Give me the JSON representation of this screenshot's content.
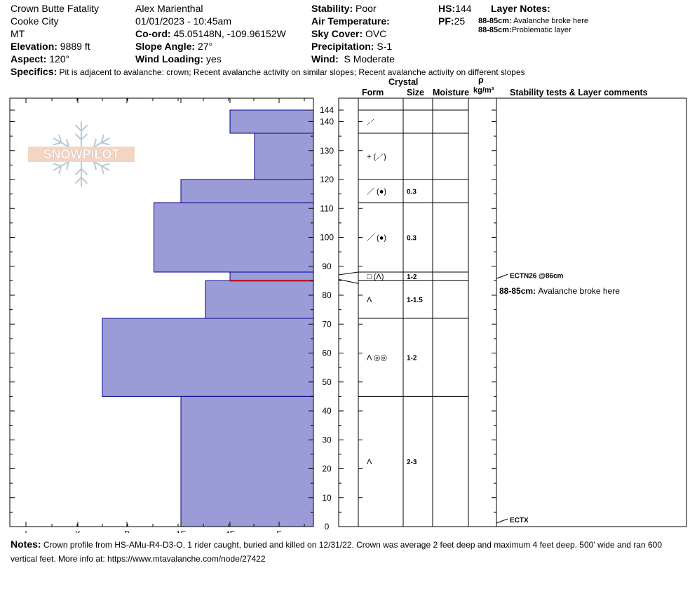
{
  "site": {
    "name": "Crown Butte Fatality",
    "city": "Cooke City",
    "state": "MT",
    "elevation_label": "Elevation:",
    "elevation": "9889 ft",
    "aspect_label": "Aspect:",
    "aspect": "120°"
  },
  "observer": {
    "name": "Alex Marienthal",
    "datetime": "01/01/2023 - 10:45am",
    "coord_label": "Co-ord:",
    "coord": "45.05148N, -109.96152W",
    "slope_label": "Slope Angle:",
    "slope": "27°",
    "wind_loading_label": "Wind Loading:",
    "wind_loading": "yes"
  },
  "conditions": {
    "stability_label": "Stability:",
    "stability": "Poor",
    "air_temp_label": "Air Temperature:",
    "sky_label": "Sky Cover:",
    "sky": "OVC",
    "precip_label": "Precipitation:",
    "precip": "S-1",
    "wind_label": "Wind:",
    "wind": "S Moderate"
  },
  "snowpack": {
    "hs_label": "HS:",
    "hs": "144",
    "pf_label": "PF:",
    "pf": "25"
  },
  "layer_notes": {
    "title": "Layer Notes:",
    "items": [
      {
        "range": "88-85cm:",
        "text": "Avalanche broke here"
      },
      {
        "range": "88-85cm:",
        "text": "Problematic layer"
      }
    ]
  },
  "specifics": {
    "label": "Specifics:",
    "text": "Pit is adjacent to avalanche: crown; Recent avalanche activity on similar slopes; Recent avalanche activity on different slopes"
  },
  "columns": {
    "crystal": "Crystal",
    "form": "Form",
    "size": "Size",
    "moisture": "Moisture",
    "rho": "ρ",
    "density_unit": "kg/m³",
    "comments": "Stability tests & Layer comments"
  },
  "logo": {
    "text": "SNOWPILOT",
    "color": "#f0c8b0"
  },
  "notes": {
    "label": "Notes:",
    "text": "Crown profile from HS-AMu-R4-D3-O, 1 rider caught, buried and killed on 12/31/22. Crown was average 2 feet deep and maximum 4 feet deep. 500' wide and ran 600 vertical feet. More info at: https://www.mtavalanche.com/node/27422"
  },
  "chart_data": {
    "type": "bar",
    "orientation": "horizontal",
    "title": "",
    "ylabel": "",
    "xlabel": "",
    "ylim": [
      0,
      148
    ],
    "hardness_scale": [
      "I",
      "K",
      "P",
      "1F",
      "4F",
      "F"
    ],
    "y_ticks": [
      0,
      10,
      20,
      30,
      40,
      50,
      60,
      70,
      80,
      90,
      100,
      110,
      120,
      130,
      140,
      144
    ],
    "colors": {
      "bar_fill": "#9b9bd7",
      "bar_stroke": "#00008b",
      "weak_layer": "#c00000"
    },
    "layers": [
      {
        "top": 144,
        "bottom": 136,
        "hardness": "4F",
        "form": "⸝⸍",
        "size": "",
        "moisture": ""
      },
      {
        "top": 136,
        "bottom": 120,
        "hardness": "4F-F",
        "form": "+ (⸝⸍)",
        "size": "",
        "moisture": ""
      },
      {
        "top": 120,
        "bottom": 112,
        "hardness": "1F",
        "form": "／ (●)",
        "size": "0.3",
        "moisture": ""
      },
      {
        "top": 112,
        "bottom": 88,
        "hardness": "P-1F",
        "form": "／ (●)",
        "size": "0.3",
        "moisture": ""
      },
      {
        "top": 88,
        "bottom": 85,
        "hardness": "4F",
        "form": "□ (Λ)",
        "size": "1-2",
        "moisture": ""
      },
      {
        "top": 85,
        "bottom": 72,
        "hardness": "1F-4F",
        "form": "Λ",
        "size": "1-1.5",
        "moisture": ""
      },
      {
        "top": 72,
        "bottom": 45,
        "hardness": "K-P",
        "form": "Λ ◎◎",
        "size": "1-2",
        "moisture": ""
      },
      {
        "top": 45,
        "bottom": 0,
        "hardness": "1F",
        "form": "Λ",
        "size": "2-3",
        "moisture": ""
      }
    ],
    "weak_layer_depth": 85,
    "tests": [
      {
        "depth": 86,
        "label": "ECTN26 @86cm"
      },
      {
        "depth": 0,
        "label": "ECTX"
      }
    ],
    "comments": [
      {
        "depth": 81,
        "range": "88-85cm:",
        "text": "Avalanche broke here"
      }
    ]
  }
}
